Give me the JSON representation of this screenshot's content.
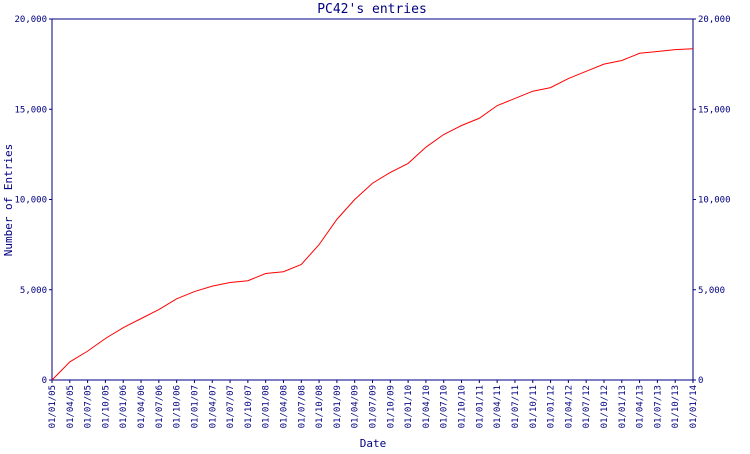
{
  "chart_data": {
    "type": "line",
    "title": "PC42's entries",
    "x_label": "Date",
    "y_label": "Number of Entries",
    "categories": [
      "01/01/05",
      "01/04/05",
      "01/07/05",
      "01/10/05",
      "01/01/06",
      "01/04/06",
      "01/07/06",
      "01/10/06",
      "01/01/07",
      "01/04/07",
      "01/07/07",
      "01/10/07",
      "01/01/08",
      "01/04/08",
      "01/07/08",
      "01/10/08",
      "01/01/09",
      "01/04/09",
      "01/07/09",
      "01/10/09",
      "01/01/10",
      "01/04/10",
      "01/07/10",
      "01/10/10",
      "01/01/11",
      "01/04/11",
      "01/07/11",
      "01/10/11",
      "01/01/12",
      "01/04/12",
      "01/07/12",
      "01/10/12",
      "01/01/13",
      "01/04/13",
      "01/07/13",
      "01/10/13",
      "01/01/14"
    ],
    "series": [
      {
        "name": "PC42",
        "color": "#ff0000",
        "values": [
          0,
          1000,
          1600,
          2300,
          2900,
          3400,
          3900,
          4500,
          4900,
          5200,
          5400,
          5500,
          5900,
          6000,
          6400,
          7500,
          8900,
          10000,
          10900,
          11500,
          12000,
          12900,
          13600,
          14100,
          14500,
          15200,
          15600,
          16000,
          16200,
          16700,
          17100,
          17500,
          17700,
          18100,
          18200,
          18300,
          18350
        ]
      }
    ],
    "ylim": [
      0,
      20000
    ],
    "yticks": [
      0,
      {
        "value": 5000,
        "label": "5,000"
      },
      {
        "value": 10000,
        "label": "10,000"
      },
      {
        "value": 15000,
        "label": "15,000"
      },
      {
        "value": 20000,
        "label": "20,000"
      }
    ],
    "right_axis_ticks": true
  }
}
